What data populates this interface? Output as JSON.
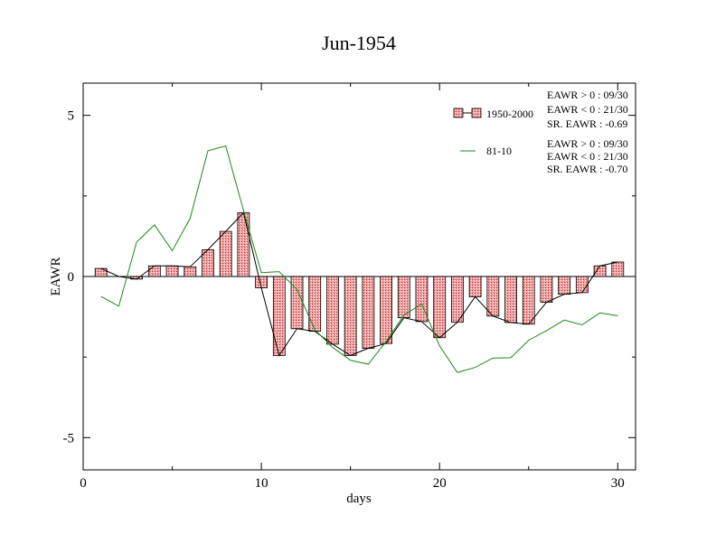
{
  "chart_data": {
    "type": "bar",
    "title": "Jun-1954",
    "xlabel": "days",
    "ylabel": "EAWR",
    "xlim": [
      0,
      31
    ],
    "ylim": [
      -6,
      6
    ],
    "xticks": [
      0,
      10,
      20,
      30
    ],
    "xtick_labels": [
      "0",
      "10",
      "20",
      "30"
    ],
    "yticks": [
      5,
      0,
      -5
    ],
    "ytick_labels": [
      "5",
      "0",
      "-5"
    ],
    "x": [
      1,
      2,
      3,
      4,
      5,
      6,
      7,
      8,
      9,
      10,
      11,
      12,
      13,
      14,
      15,
      16,
      17,
      18,
      19,
      20,
      21,
      22,
      23,
      24,
      25,
      26,
      27,
      28,
      29,
      30
    ],
    "series": [
      {
        "name": "1950-2000",
        "type": "bar",
        "bar_indices": [
          1,
          3,
          4,
          5,
          6,
          7,
          8,
          9,
          10,
          11,
          12,
          13,
          14,
          15,
          16,
          17,
          18,
          19,
          20,
          21,
          22,
          23,
          24,
          25,
          26,
          27,
          28,
          29,
          30
        ],
        "values": [
          0.25,
          0.0,
          -0.08,
          0.33,
          0.33,
          0.3,
          0.83,
          1.4,
          1.98,
          -0.35,
          -2.45,
          -1.62,
          -1.7,
          -2.1,
          -2.45,
          -2.23,
          -2.08,
          -1.28,
          -1.4,
          -1.9,
          -1.42,
          -0.63,
          -1.23,
          -1.43,
          -1.48,
          -0.8,
          -0.55,
          -0.5,
          0.33,
          0.45
        ],
        "color": "#e86a6a",
        "stats": [
          "EAWR > 0 : 09/30",
          "EAWR < 0 : 21/30",
          "SR. EAWR : -0.69"
        ]
      },
      {
        "name": "81-10",
        "type": "line",
        "values": [
          -0.62,
          -0.92,
          1.07,
          1.6,
          0.8,
          1.8,
          3.9,
          4.05,
          2.05,
          0.12,
          0.15,
          -0.4,
          -1.65,
          -2.2,
          -2.6,
          -2.72,
          -2.02,
          -1.2,
          -0.85,
          -2.15,
          -2.98,
          -2.82,
          -2.53,
          -2.52,
          -1.98,
          -1.68,
          -1.35,
          -1.5,
          -1.13,
          -1.22
        ],
        "color": "#1a8a1a",
        "stats": [
          "EAWR > 0 : 09/30",
          "EAWR < 0 : 21/30",
          "SR. EAWR : -0.70"
        ]
      }
    ],
    "legend_position": "top-right"
  }
}
